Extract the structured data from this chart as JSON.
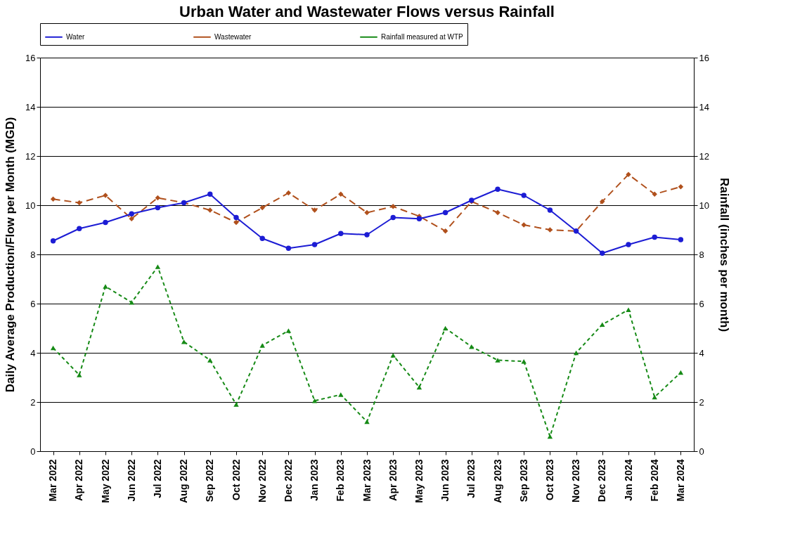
{
  "chart_data": {
    "type": "line",
    "title": "Urban Water and Wastewater Flows versus Rainfall",
    "categories": [
      "Mar 2022",
      "Apr 2022",
      "May 2022",
      "Jun 2022",
      "Jul 2022",
      "Aug 2022",
      "Sep 2022",
      "Oct 2022",
      "Nov 2022",
      "Dec 2022",
      "Jan 2023",
      "Feb 2023",
      "Mar 2023",
      "Apr 2023",
      "May 2023",
      "Jun 2023",
      "Jul 2023",
      "Aug 2023",
      "Sep 2023",
      "Oct 2023",
      "Nov 2023",
      "Dec 2023",
      "Jan 2024",
      "Feb 2024",
      "Mar 2024"
    ],
    "ylabel": "Daily Average Production/Flow per Month (MGD)",
    "y2label": "Rainfall (inches per month)",
    "ylim": [
      0,
      16
    ],
    "yticks": [
      0,
      2,
      4,
      6,
      8,
      10,
      12,
      14,
      16
    ],
    "y2lim": [
      0,
      16
    ],
    "y2ticks": [
      0,
      2,
      4,
      6,
      8,
      10,
      12,
      14,
      16
    ],
    "grid": "y",
    "legend": "top",
    "series": [
      {
        "name": "Water",
        "color": "#1c1cd4",
        "marker": "circle",
        "line_style": "solid",
        "values": [
          8.55,
          9.05,
          9.3,
          9.65,
          9.9,
          10.1,
          10.45,
          9.5,
          8.65,
          8.25,
          8.4,
          8.85,
          8.8,
          9.5,
          9.45,
          9.7,
          10.2,
          10.65,
          10.4,
          9.8,
          8.95,
          8.05,
          8.4,
          8.7,
          8.6
        ]
      },
      {
        "name": "Wastewater",
        "color": "#b0501c",
        "marker": "diamond",
        "line_style": "dashed",
        "values": [
          10.25,
          10.1,
          10.4,
          9.45,
          10.3,
          10.1,
          9.8,
          9.3,
          9.9,
          10.5,
          9.8,
          10.45,
          9.7,
          9.95,
          9.55,
          8.95,
          10.15,
          9.7,
          9.2,
          9.0,
          8.95,
          10.15,
          11.25,
          10.45,
          10.75
        ]
      },
      {
        "name": "Rainfall measured at WTP",
        "color": "#168a16",
        "marker": "triangle",
        "line_style": "dotted",
        "axis": "y2",
        "values": [
          4.2,
          3.1,
          6.7,
          6.05,
          7.5,
          4.45,
          3.7,
          1.9,
          4.3,
          4.9,
          2.05,
          2.3,
          1.2,
          3.9,
          2.6,
          5.0,
          4.25,
          3.7,
          3.65,
          0.6,
          4.0,
          5.15,
          5.75,
          2.2,
          3.2
        ]
      }
    ]
  }
}
